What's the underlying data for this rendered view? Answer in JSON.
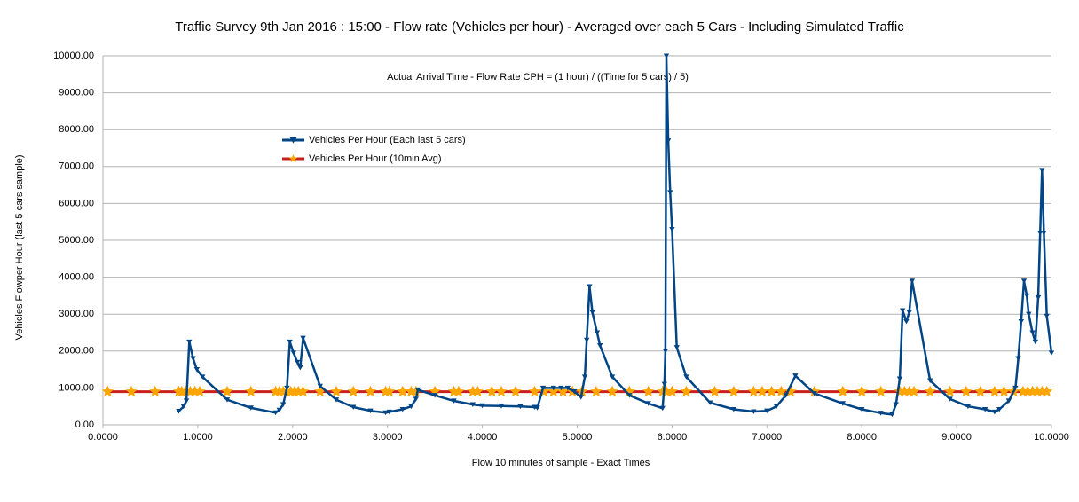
{
  "chart_data": {
    "type": "line",
    "title": "Traffic Survey 9th Jan 2016 : 15:00 - Flow rate (Vehicles per hour) - Averaged over each 5 Cars  - Including Simulated Traffic",
    "annotation": "Actual Arrival Time - Flow Rate CPH = (1 hour) / ((Time for 5 cars) / 5)",
    "x_label": "Flow  10 minutes of sample - Exact Times",
    "y_label": "Vehicles Flowper Hour (last 5 cars sample)",
    "xlim": [
      0,
      10
    ],
    "ylim": [
      0,
      10000
    ],
    "grid": true,
    "legend": "upper left",
    "xticks": [
      {
        "value": 0,
        "label": "0.0000"
      },
      {
        "value": 1,
        "label": "1.0000"
      },
      {
        "value": 2,
        "label": "2.0000"
      },
      {
        "value": 3,
        "label": "3.0000"
      },
      {
        "value": 4,
        "label": "4.0000"
      },
      {
        "value": 5,
        "label": "5.0000"
      },
      {
        "value": 6,
        "label": "6.0000"
      },
      {
        "value": 7,
        "label": "7.0000"
      },
      {
        "value": 8,
        "label": "8.0000"
      },
      {
        "value": 9,
        "label": "9.0000"
      },
      {
        "value": 10,
        "label": "10.0000"
      }
    ],
    "yticks": [
      {
        "value": 0,
        "label": "0.00"
      },
      {
        "value": 1000,
        "label": "1000.00"
      },
      {
        "value": 2000,
        "label": "2000.00"
      },
      {
        "value": 3000,
        "label": "3000.00"
      },
      {
        "value": 4000,
        "label": "4000.00"
      },
      {
        "value": 5000,
        "label": "5000.00"
      },
      {
        "value": 6000,
        "label": "6000.00"
      },
      {
        "value": 7000,
        "label": "7000.00"
      },
      {
        "value": 8000,
        "label": "8000.00"
      },
      {
        "value": 9000,
        "label": "9000.00"
      },
      {
        "value": 10000,
        "label": "10000.00"
      }
    ],
    "series": [
      {
        "name": "Vehicles Per Hour (Each  last 5 cars)",
        "color": "#004586",
        "marker": "triangle",
        "x": [
          0.8,
          0.85,
          0.88,
          0.91,
          0.95,
          0.99,
          1.05,
          1.31,
          1.56,
          1.82,
          1.86,
          1.9,
          1.94,
          1.97,
          2.01,
          2.05,
          2.08,
          2.11,
          2.29,
          2.46,
          2.64,
          2.82,
          2.98,
          3.02,
          3.16,
          3.25,
          3.3,
          3.32,
          3.5,
          3.7,
          3.9,
          4.0,
          4.2,
          4.4,
          4.55,
          4.58,
          4.64,
          4.75,
          4.83,
          4.9,
          4.97,
          5.04,
          5.08,
          5.1,
          5.13,
          5.16,
          5.21,
          5.24,
          5.37,
          5.55,
          5.75,
          5.9,
          5.92,
          5.93,
          5.94,
          5.96,
          5.98,
          6.0,
          6.05,
          6.15,
          6.4,
          6.65,
          6.86,
          7.0,
          7.1,
          7.2,
          7.3,
          7.5,
          7.8,
          8.0,
          8.2,
          8.32,
          8.36,
          8.4,
          8.43,
          8.47,
          8.5,
          8.53,
          8.72,
          8.93,
          9.12,
          9.3,
          9.4,
          9.45,
          9.55,
          9.62,
          9.65,
          9.68,
          9.71,
          9.74,
          9.76,
          9.8,
          9.83,
          9.86,
          9.88,
          9.9,
          9.92,
          9.95,
          10.0
        ],
        "values": [
          370,
          500,
          650,
          2250,
          1800,
          1500,
          1300,
          680,
          460,
          330,
          400,
          550,
          1000,
          2250,
          1950,
          1700,
          1550,
          2350,
          1050,
          680,
          480,
          380,
          330,
          350,
          420,
          500,
          700,
          950,
          800,
          650,
          550,
          520,
          510,
          500,
          480,
          460,
          1000,
          1000,
          1000,
          1000,
          900,
          750,
          1300,
          2300,
          3750,
          3050,
          2500,
          2150,
          1300,
          800,
          580,
          450,
          1100,
          2000,
          10000,
          7700,
          6300,
          5300,
          2100,
          1300,
          600,
          420,
          360,
          380,
          500,
          800,
          1330,
          850,
          580,
          420,
          320,
          280,
          550,
          1250,
          3100,
          2800,
          3050,
          3900,
          1200,
          700,
          500,
          420,
          350,
          420,
          650,
          1000,
          1800,
          2800,
          3900,
          3500,
          3000,
          2500,
          2250,
          3450,
          5200,
          6900,
          5200,
          2950,
          1950
        ]
      },
      {
        "name": "Vehicles Per Hour (10min Avg)",
        "color": "#c9211e",
        "marker": "star",
        "marker_color": "#ffa500",
        "x": [
          0.05,
          0.3,
          0.55,
          0.8,
          0.83,
          0.87,
          0.92,
          0.97,
          1.02,
          1.31,
          1.56,
          1.82,
          1.86,
          1.9,
          1.94,
          1.98,
          2.02,
          2.06,
          2.11,
          2.29,
          2.46,
          2.64,
          2.82,
          2.98,
          3.02,
          3.16,
          3.25,
          3.3,
          3.5,
          3.7,
          3.75,
          3.9,
          3.95,
          4.1,
          4.2,
          4.35,
          4.55,
          4.65,
          4.75,
          4.85,
          4.95,
          5.05,
          5.2,
          5.37,
          5.55,
          5.75,
          5.9,
          5.94,
          6.0,
          6.15,
          6.45,
          6.65,
          6.86,
          6.95,
          7.05,
          7.15,
          7.25,
          7.5,
          7.8,
          8.0,
          8.2,
          8.4,
          8.45,
          8.5,
          8.55,
          8.72,
          8.93,
          9.1,
          9.25,
          9.4,
          9.5,
          9.6,
          9.7,
          9.75,
          9.8,
          9.85,
          9.9,
          9.95
        ],
        "values": [
          900,
          900,
          900,
          900,
          900,
          900,
          900,
          900,
          900,
          900,
          900,
          900,
          900,
          900,
          900,
          900,
          900,
          900,
          900,
          900,
          900,
          900,
          900,
          900,
          900,
          900,
          900,
          900,
          900,
          900,
          900,
          900,
          900,
          900,
          900,
          900,
          900,
          900,
          900,
          900,
          900,
          900,
          900,
          900,
          900,
          900,
          900,
          900,
          900,
          900,
          900,
          900,
          900,
          900,
          900,
          900,
          900,
          900,
          900,
          900,
          900,
          900,
          900,
          900,
          900,
          900,
          900,
          900,
          900,
          900,
          900,
          900,
          900,
          900,
          900,
          900,
          900,
          900
        ]
      }
    ]
  }
}
